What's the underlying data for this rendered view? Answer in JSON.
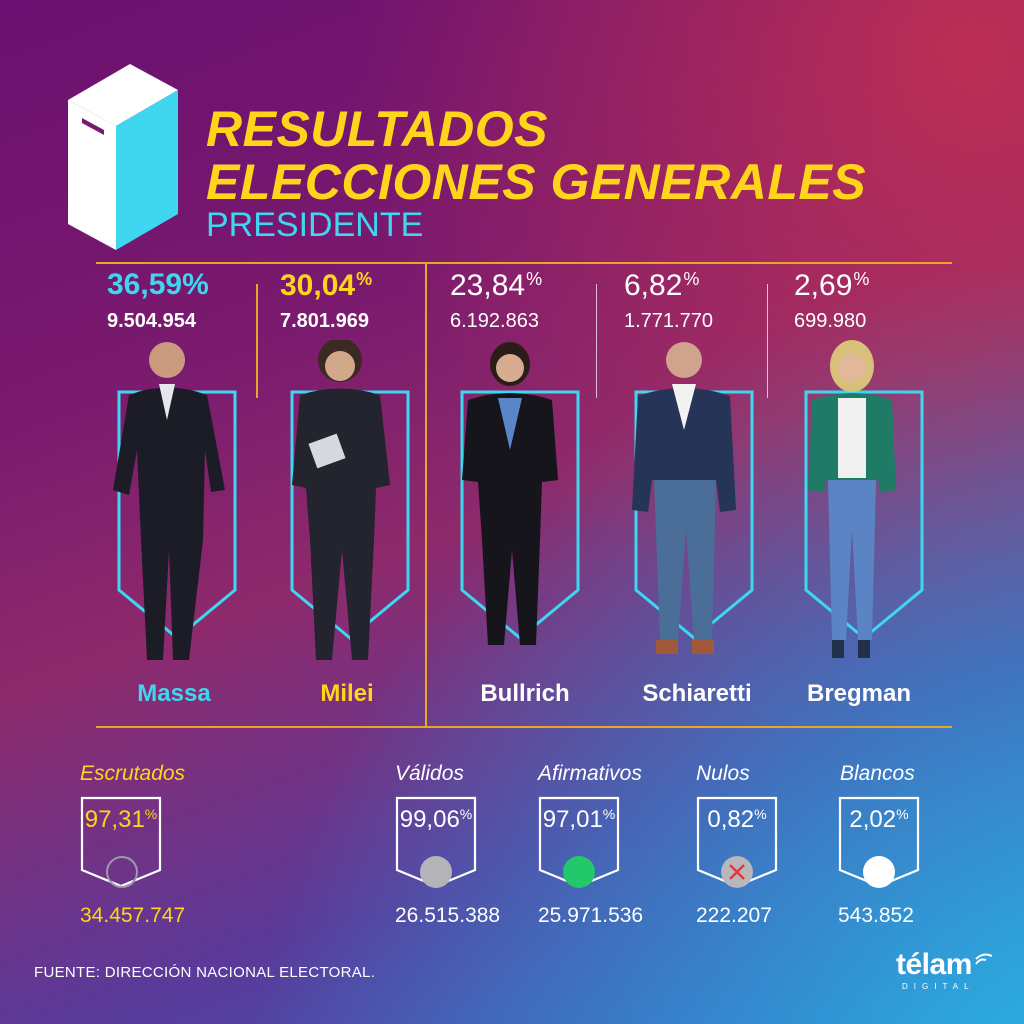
{
  "header": {
    "title_line1": "RESULTADOS",
    "title_line2": "ELECCIONES GENERALES",
    "subtitle": "PRESIDENTE"
  },
  "candidates": [
    {
      "name": "Massa",
      "pct": "36,59%",
      "votes": "9.504.954",
      "color": "#3fd6f0"
    },
    {
      "name": "Milei",
      "pct": "30,04",
      "pct_sign": "%",
      "votes": "7.801.969",
      "color": "#ffd51c"
    },
    {
      "name": "Bullrich",
      "pct": "23,84",
      "pct_sign": "%",
      "votes": "6.192.863",
      "color": "#ffffff"
    },
    {
      "name": "Schiaretti",
      "pct": "6,82",
      "pct_sign": "%",
      "votes": "1.771.770",
      "color": "#ffffff"
    },
    {
      "name": "Bregman",
      "pct": "2,69",
      "pct_sign": "%",
      "votes": "699.980",
      "color": "#ffffff"
    }
  ],
  "stats": [
    {
      "label": "Escrutados",
      "pct": "97,31",
      "pct_sign": "%",
      "count": "34.457.747",
      "color": "#ffd51c",
      "icon": "empty-circle-icon"
    },
    {
      "label": "Válidos",
      "pct": "99,06",
      "pct_sign": "%",
      "count": "26.515.388",
      "color": "#ffffff",
      "icon": "gray-dot-icon"
    },
    {
      "label": "Afirmativos",
      "pct": "97,01",
      "pct_sign": "%",
      "count": "25.971.536",
      "color": "#ffffff",
      "icon": "green-dot-icon"
    },
    {
      "label": "Nulos",
      "pct": "0,82",
      "pct_sign": "%",
      "count": "222.207",
      "color": "#ffffff",
      "icon": "red-x-icon"
    },
    {
      "label": "Blancos",
      "pct": "2,02",
      "pct_sign": "%",
      "count": "543.852",
      "color": "#ffffff",
      "icon": "white-dot-icon"
    }
  ],
  "footer": {
    "source": "FUENTE: DIRECCIÓN NACIONAL ELECTORAL."
  },
  "logo": {
    "word": "télam",
    "sub": "DIGITAL"
  },
  "colors": {
    "accent_yellow": "#ffd51c",
    "accent_cyan": "#3fd6f0",
    "divider": "#e9a626"
  }
}
